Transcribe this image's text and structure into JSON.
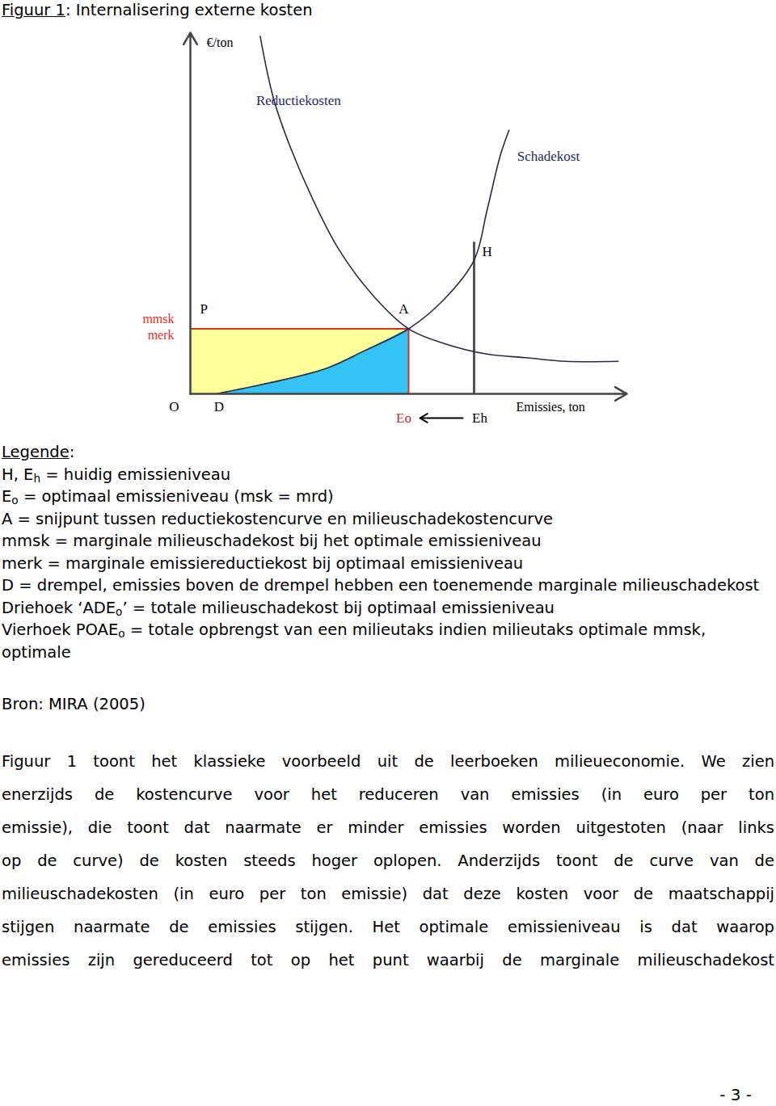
{
  "caption": [
    {
      "u": "Figuur 1"
    },
    {
      "text": ": Internalisering externe kosten"
    }
  ],
  "chart_data": {
    "type": "line",
    "x_label": "Emissies, ton",
    "y_label": "€/ton",
    "xlim": [
      0,
      100
    ],
    "ylim": [
      0,
      100
    ],
    "tick_labels": false,
    "series": [
      {
        "name": "Reductiekosten",
        "color": "#2a2a48",
        "x": [
          16,
          19,
          23,
          28,
          34,
          42,
          50,
          58,
          68,
          77,
          86,
          98
        ],
        "values": [
          99,
          82,
          68,
          54,
          40,
          27,
          18,
          14,
          11,
          10,
          9,
          9
        ]
      },
      {
        "name": "Schadekost",
        "color": "#2a2a48",
        "x": [
          6,
          18,
          31,
          40,
          50,
          58,
          65,
          68,
          71,
          73
        ],
        "values": [
          0,
          3,
          7,
          12,
          18,
          26,
          37,
          51,
          66,
          73
        ]
      }
    ],
    "points": {
      "origin": "O",
      "threshold": {
        "label": "D",
        "x": 6
      },
      "optimum": {
        "label": "A",
        "x": 50,
        "y": 18,
        "x_label": "Eo",
        "y_label": "P",
        "y_value_labels": [
          "mmsk",
          "merk"
        ]
      },
      "current": {
        "label": "H",
        "x": 65,
        "y": 42,
        "x_label": "Eh"
      }
    }
  },
  "legend": {
    "heading": [
      {
        "u": "Legende"
      },
      {
        "text": ":"
      }
    ],
    "items": [
      [
        {
          "text": "H, E"
        },
        {
          "sub": "h"
        },
        {
          "text": " = huidig emissieniveau"
        }
      ],
      [
        {
          "text": "E"
        },
        {
          "sub": "o"
        },
        {
          "text": " = optimaal emissieniveau (msk = mrd)"
        }
      ],
      [
        {
          "text": "A = snijpunt tussen reductiekostencurve en milieuschadekostencurve"
        }
      ],
      [
        {
          "text": "mmsk = marginale milieuschadekost bij het optimale emissieniveau"
        }
      ],
      [
        {
          "text": "merk = marginale emissiereductiekost bij optimaal emissieniveau"
        }
      ],
      [
        {
          "text": "D = drempel, emissies boven de drempel hebben een toenemende marginale milieuschadekost"
        }
      ],
      [
        {
          "text": "Driehoek ‘ADE"
        },
        {
          "sub": "o"
        },
        {
          "text": "’ = totale milieuschadekost bij optimaal emissieniveau"
        }
      ],
      [
        {
          "text": "Vierhoek POAE"
        },
        {
          "sub": "o"
        },
        {
          "text": " = totale opbrengst van een milieutaks indien milieutaks optimale mmsk, optimale"
        }
      ]
    ]
  },
  "source": "Bron: MIRA (2005)",
  "body": {
    "lines": [
      "Figuur 1 toont het klassieke voorbeeld uit de leerboeken milieueconomie. We zien",
      "enerzijds de kostencurve voor het reduceren van emissies (in euro per ton",
      "emissie), die toont dat naarmate er minder emissies worden uitgestoten (naar links",
      "op de curve) de kosten steeds hoger oplopen. Anderzijds toont de curve van de",
      "milieuschadekosten (in euro per ton emissie) dat deze kosten voor de maatschappij",
      "stijgen naarmate de emissies stijgen. Het optimale emissieniveau is dat waarop",
      "emissies zijn gereduceerd tot op het punt waarbij de marginale milieuschadekost"
    ]
  },
  "page_number": "- 3 -"
}
